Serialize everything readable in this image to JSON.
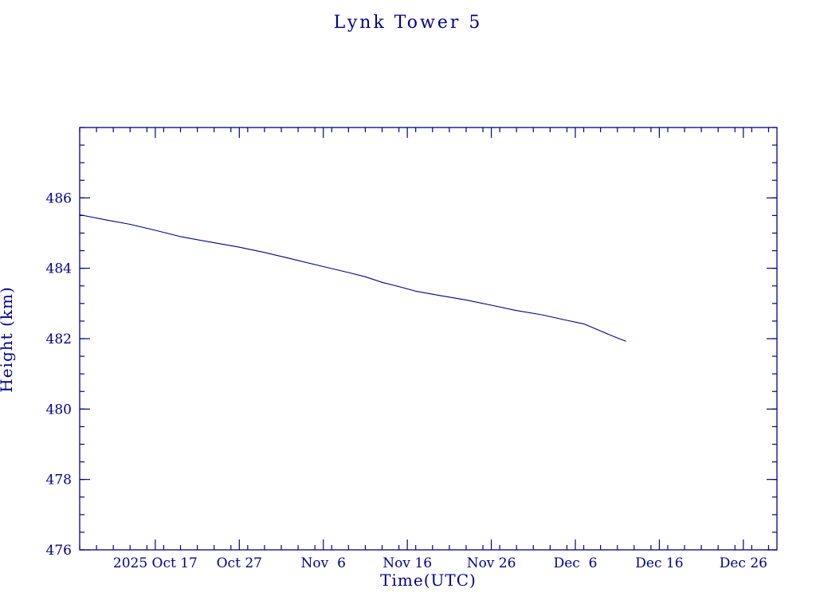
{
  "page": {
    "background_color": "#ffffff",
    "accent_color": "#00008B"
  },
  "chart_data": {
    "type": "line",
    "title": "Lynk Tower 5",
    "xlabel": "Time(UTC)",
    "ylabel": "Height (km)",
    "accent_color": "#00008B",
    "grid": false,
    "legend": null,
    "x_unit": "days since plot left edge (2025 Oct 8)",
    "xlim_days": [
      0,
      83
    ],
    "ylim": [
      476,
      488
    ],
    "x_ticks": [
      {
        "day": 9,
        "label": "2025 Oct 17"
      },
      {
        "day": 19,
        "label": "Oct 27"
      },
      {
        "day": 29,
        "label": "Nov  6"
      },
      {
        "day": 39,
        "label": "Nov 16"
      },
      {
        "day": 49,
        "label": "Nov 26"
      },
      {
        "day": 59,
        "label": "Dec  6"
      },
      {
        "day": 69,
        "label": "Dec 16"
      },
      {
        "day": 79,
        "label": "Dec 26"
      }
    ],
    "x_minor_step_days": 2,
    "y_ticks": [
      476,
      478,
      480,
      482,
      484,
      486
    ],
    "y_minor_step": 0.5,
    "series": [
      {
        "name": "height-km",
        "points": [
          [
            0,
            485.52
          ],
          [
            3,
            485.38
          ],
          [
            6,
            485.25
          ],
          [
            9,
            485.08
          ],
          [
            12,
            484.9
          ],
          [
            15,
            484.77
          ],
          [
            19,
            484.6
          ],
          [
            22,
            484.45
          ],
          [
            25,
            484.28
          ],
          [
            29,
            484.05
          ],
          [
            32,
            483.88
          ],
          [
            34,
            483.76
          ],
          [
            36,
            483.6
          ],
          [
            38,
            483.48
          ],
          [
            40,
            483.35
          ],
          [
            43,
            483.22
          ],
          [
            46,
            483.1
          ],
          [
            49,
            482.95
          ],
          [
            52,
            482.8
          ],
          [
            55,
            482.68
          ],
          [
            58,
            482.52
          ],
          [
            60,
            482.42
          ],
          [
            62,
            482.22
          ],
          [
            64,
            482.02
          ],
          [
            65,
            481.93
          ]
        ]
      }
    ]
  }
}
